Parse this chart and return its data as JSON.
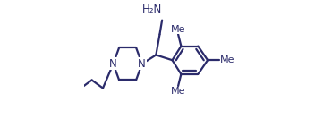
{
  "background_color": "#ffffff",
  "line_color": "#2b2b6b",
  "text_color": "#2b2b6b",
  "line_width": 1.6,
  "font_size": 8.5,
  "figsize": [
    3.52,
    1.52
  ],
  "dpi": 100,
  "xlim": [
    0.0,
    1.0
  ],
  "ylim": [
    0.05,
    0.95
  ]
}
